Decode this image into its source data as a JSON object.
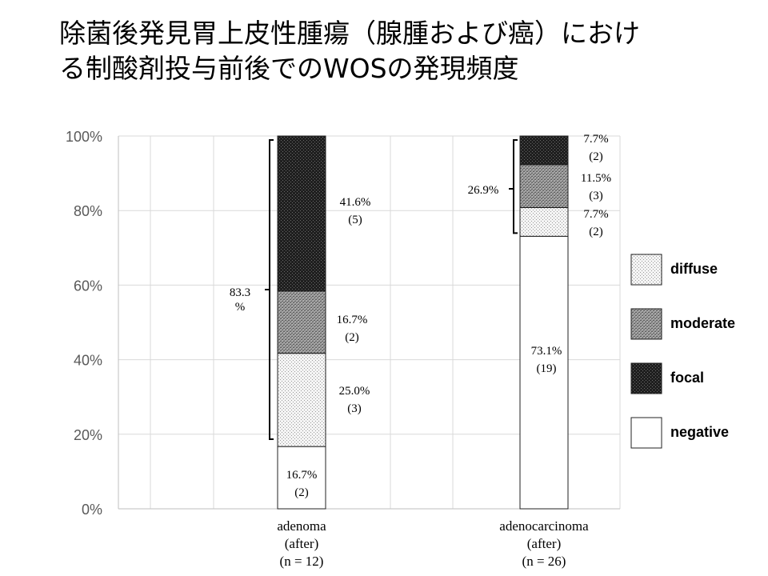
{
  "title": {
    "line1": "除菌後発見胃上皮性腫瘍（腺腫および癌）におけ",
    "line2": "る制酸剤投与前後でのWOSの発現頻度"
  },
  "colors": {
    "negative": "#ffffff",
    "diffuse": "#ececec",
    "moderate": "#8c8c8c",
    "focal": "#262626",
    "grid": "#d9d9d9",
    "axis": "#333333"
  },
  "chart_data": {
    "type": "bar",
    "stacked": true,
    "ylim": [
      0,
      100
    ],
    "yticks": [
      "0%",
      "20%",
      "40%",
      "60%",
      "80%",
      "100%"
    ],
    "grid": true,
    "legend_position": "right",
    "categories": [
      {
        "lines": [
          "adenoma",
          "(after)",
          "(n = 12)"
        ]
      },
      {
        "lines": [
          "adenocarcinoma",
          "(after)",
          "(n = 26)"
        ]
      }
    ],
    "series": [
      {
        "name": "negative",
        "values": [
          16.7,
          73.1
        ],
        "labels": [
          [
            "16.7%",
            "(2)"
          ],
          [
            "73.1%",
            "(19)"
          ]
        ]
      },
      {
        "name": "diffuse",
        "values": [
          25.0,
          7.7
        ],
        "labels": [
          [
            "25.0%",
            "(3)"
          ],
          [
            "7.7%",
            "(2)"
          ]
        ]
      },
      {
        "name": "moderate",
        "values": [
          16.7,
          11.5
        ],
        "labels": [
          [
            "16.7%",
            "(2)"
          ],
          [
            "11.5%",
            "(3)"
          ]
        ]
      },
      {
        "name": "focal",
        "values": [
          41.6,
          7.7
        ],
        "labels": [
          [
            "41.6%",
            "(5)"
          ],
          [
            "7.7%",
            "(2)"
          ]
        ]
      }
    ],
    "brackets": [
      {
        "category": 0,
        "from": 16.7,
        "to": 100,
        "label_lines": [
          "83.3",
          "%"
        ]
      },
      {
        "category": 1,
        "from": 73.1,
        "to": 100,
        "label_lines": [
          "26.9%"
        ]
      }
    ],
    "legend": [
      "diffuse",
      "moderate",
      "focal",
      "negative"
    ]
  }
}
